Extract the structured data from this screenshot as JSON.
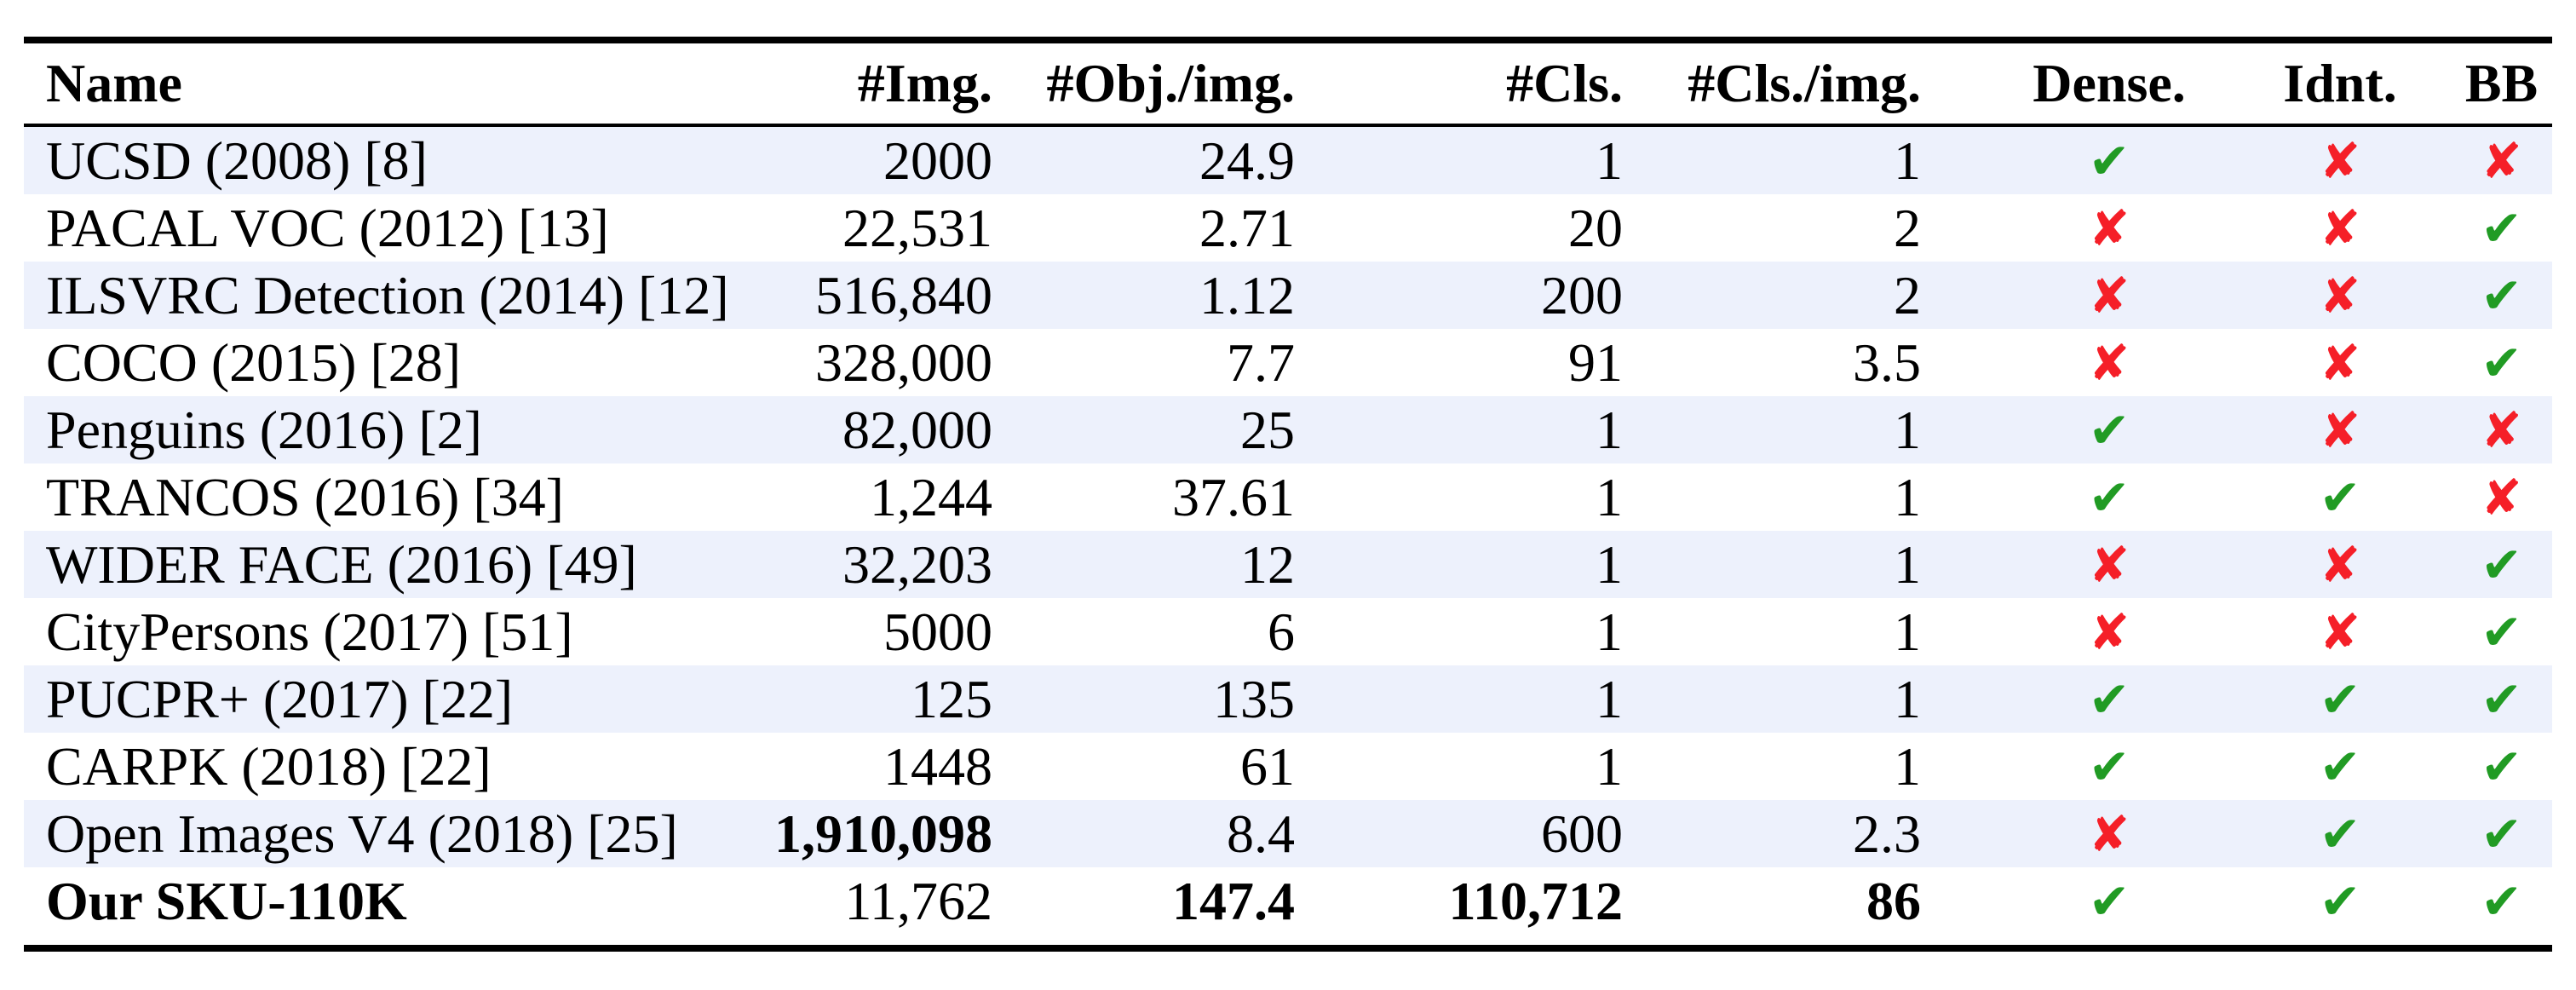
{
  "colors": {
    "background": "#ffffff",
    "row_alt_bg": "#edf1fc",
    "check_green": "#219b24",
    "cross_red": "#f51f28",
    "rule_black": "#000000"
  },
  "icons": {
    "check": "check-icon (heavy green check mark)",
    "cross": "cross-icon (heavy red ballot x)"
  },
  "table": {
    "headers": [
      "Name",
      "#Img.",
      "#Obj./img.",
      "#Cls.",
      "#Cls./img.",
      "Dense.",
      "Idnt.",
      "BB"
    ],
    "rows": [
      {
        "name": "UCSD (2008) [8]",
        "img": "2000",
        "obj": "24.9",
        "cls": "1",
        "clsimg": "1",
        "dense": "check",
        "idnt": "cross",
        "bb": "cross"
      },
      {
        "name": "PACAL VOC (2012) [13]",
        "img": "22,531",
        "obj": "2.71",
        "cls": "20",
        "clsimg": "2",
        "dense": "cross",
        "idnt": "cross",
        "bb": "check"
      },
      {
        "name": "ILSVRC Detection (2014) [12]",
        "img": "516,840",
        "obj": "1.12",
        "cls": "200",
        "clsimg": "2",
        "dense": "cross",
        "idnt": "cross",
        "bb": "check"
      },
      {
        "name": "COCO (2015) [28]",
        "img": "328,000",
        "obj": "7.7",
        "cls": "91",
        "clsimg": "3.5",
        "dense": "cross",
        "idnt": "cross",
        "bb": "check"
      },
      {
        "name": "Penguins (2016) [2]",
        "img": "82,000",
        "obj": "25",
        "cls": "1",
        "clsimg": "1",
        "dense": "check",
        "idnt": "cross",
        "bb": "cross"
      },
      {
        "name": "TRANCOS (2016) [34]",
        "img": "1,244",
        "obj": "37.61",
        "cls": "1",
        "clsimg": "1",
        "dense": "check",
        "idnt": "check",
        "bb": "cross"
      },
      {
        "name": "WIDER FACE (2016) [49]",
        "img": "32,203",
        "obj": "12",
        "cls": "1",
        "clsimg": "1",
        "dense": "cross",
        "idnt": "cross",
        "bb": "check"
      },
      {
        "name": "CityPersons (2017) [51]",
        "img": "5000",
        "obj": "6",
        "cls": "1",
        "clsimg": "1",
        "dense": "cross",
        "idnt": "cross",
        "bb": "check"
      },
      {
        "name": "PUCPR+ (2017) [22]",
        "img": "125",
        "obj": "135",
        "cls": "1",
        "clsimg": "1",
        "dense": "check",
        "idnt": "check",
        "bb": "check"
      },
      {
        "name": "CARPK (2018) [22]",
        "img": "1448",
        "obj": "61",
        "cls": "1",
        "clsimg": "1",
        "dense": "check",
        "idnt": "check",
        "bb": "check"
      },
      {
        "name": "Open Images V4 (2018) [25]",
        "img": "1,910,098",
        "obj": "8.4",
        "cls": "600",
        "clsimg": "2.3",
        "dense": "cross",
        "idnt": "check",
        "bb": "check"
      },
      {
        "name": "Our SKU-110K",
        "img": "11,762",
        "obj": "147.4",
        "cls": "110,712",
        "clsimg": "86",
        "dense": "check",
        "idnt": "check",
        "bb": "check"
      }
    ]
  }
}
